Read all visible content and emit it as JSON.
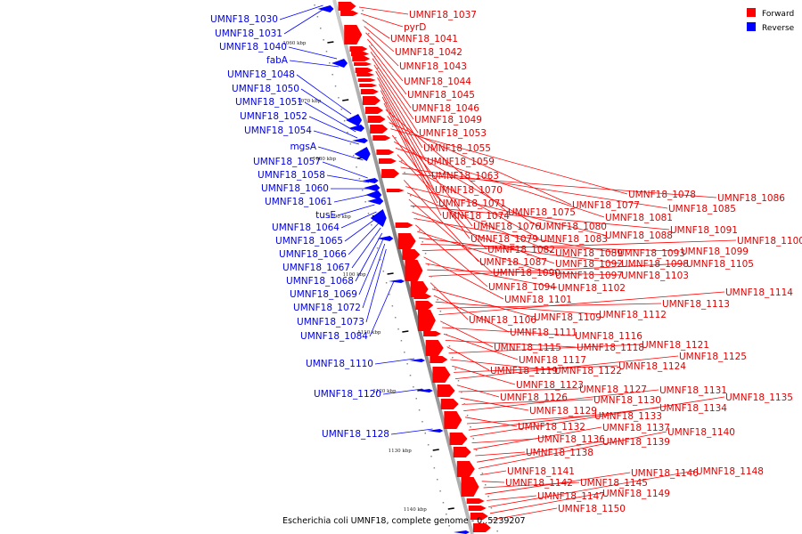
{
  "caption": "Escherichia coli UMNF18, complete genome - 0..5239207",
  "legend": [
    {
      "label": "Forward",
      "color": "#ff0000"
    },
    {
      "label": "Reverse",
      "color": "#0000ff"
    }
  ],
  "colors": {
    "forward": "#ff0000",
    "forward_label": "#e00000",
    "reverse": "#0000ff",
    "reverse_label": "#0000e0",
    "backbone": "#888888"
  },
  "scale_ticks": [
    "1060 kbp",
    "1070 kbp",
    "1080 kbp",
    "1090 kbp",
    "1100 kbp",
    "1110 kbp",
    "1120 kbp",
    "1130 kbp",
    "1140 kbp"
  ],
  "reverse_genes": [
    "UMNF18_1030",
    "UMNF18_1031",
    "UMNF18_1040",
    "fabA",
    "UMNF18_1048",
    "UMNF18_1050",
    "UMNF18_1051",
    "UMNF18_1052",
    "UMNF18_1054",
    "mgsA",
    "UMNF18_1057",
    "UMNF18_1058",
    "UMNF18_1060",
    "UMNF18_1061",
    "tusE",
    "UMNF18_1064",
    "UMNF18_1065",
    "UMNF18_1066",
    "UMNF18_1067",
    "UMNF18_1068",
    "UMNF18_1069",
    "UMNF18_1072",
    "UMNF18_1073",
    "UMNF18_1084",
    "UMNF18_1110",
    "UMNF18_1120",
    "UMNF18_1128"
  ],
  "forward_genes": [
    "UMNF18_1037",
    "pyrD",
    "UMNF18_1041",
    "UMNF18_1042",
    "UMNF18_1043",
    "UMNF18_1044",
    "UMNF18_1045",
    "UMNF18_1046",
    "UMNF18_1049",
    "UMNF18_1053",
    "UMNF18_1055",
    "UMNF18_1059",
    "UMNF18_1063",
    "UMNF18_1070",
    "UMNF18_1071",
    "UMNF18_1074",
    "UMNF18_1075",
    "UMNF18_1076",
    "UMNF18_1077",
    "UMNF18_1078",
    "UMNF18_1079",
    "UMNF18_1080",
    "UMNF18_1081",
    "UMNF18_1082",
    "UMNF18_1083",
    "UMNF18_1085",
    "UMNF18_1086",
    "UMNF18_1087",
    "UMNF18_1088",
    "UMNF18_1089",
    "UMNF18_1090",
    "UMNF18_1091",
    "UMNF18_1092",
    "UMNF18_1093",
    "UMNF18_1094",
    "UMNF18_1097",
    "UMNF18_1098",
    "UMNF18_1099",
    "UMNF18_1100",
    "UMNF18_1101",
    "UMNF18_1102",
    "UMNF18_1103",
    "UMNF18_1105",
    "UMNF18_1106",
    "UMNF18_1109",
    "UMNF18_1111",
    "UMNF18_1112",
    "UMNF18_1113",
    "UMNF18_1114",
    "UMNF18_1115",
    "UMNF18_1116",
    "UMNF18_1117",
    "UMNF18_1118",
    "UMNF18_1119",
    "UMNF18_1121",
    "UMNF18_1122",
    "UMNF18_1123",
    "UMNF18_1124",
    "UMNF18_1125",
    "UMNF18_1126",
    "UMNF18_1127",
    "UMNF18_1129",
    "UMNF18_1130",
    "UMNF18_1131",
    "UMNF18_1132",
    "UMNF18_1133",
    "UMNF18_1134",
    "UMNF18_1135",
    "UMNF18_1136",
    "UMNF18_1137",
    "UMNF18_1138",
    "UMNF18_1139",
    "UMNF18_1140",
    "UMNF18_1141",
    "UMNF18_1142",
    "UMNF18_1145",
    "UMNF18_1146",
    "UMNF18_1147",
    "UMNF18_1148",
    "UMNF18_1149",
    "UMNF18_1150"
  ]
}
